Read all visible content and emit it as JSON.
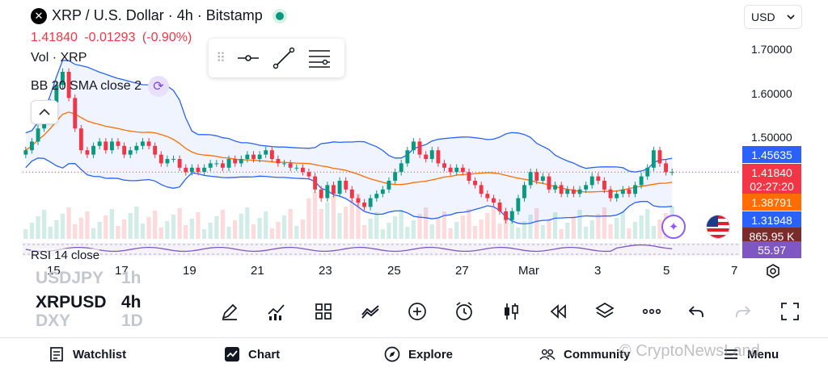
{
  "header": {
    "symbol_title": "XRP / U.S. Dollar · 4h · Bitstamp",
    "last_price": "1.41840",
    "change": "-0.01293",
    "change_pct": "(-0.90%)",
    "volume_label": "Vol · XRP",
    "indicator_label": "BB 20 SMA close 2",
    "logo_letter": "✕"
  },
  "currency_select": {
    "value": "USD"
  },
  "price_axis": {
    "ticks": [
      "1.70000",
      "1.60000",
      "1.50000"
    ],
    "tags": [
      {
        "text": "1.45635",
        "color": "#2962ff"
      },
      {
        "text": "1.41840",
        "color": "#f23645"
      },
      {
        "text": "02:27:20",
        "color": "#f23645"
      },
      {
        "text": "1.38791",
        "color": "#ff6d00"
      },
      {
        "text": "1.31948",
        "color": "#2962ff"
      },
      {
        "text": "865.95 K",
        "color": "#7a2b2b"
      },
      {
        "text": "55.97",
        "color": "#7e57c2"
      }
    ]
  },
  "rsi": {
    "label": "RSI 14 close"
  },
  "time_axis": {
    "ticks": [
      "15",
      "17",
      "19",
      "21",
      "23",
      "25",
      "27",
      "Mar",
      "3",
      "5",
      "7"
    ]
  },
  "symbols": [
    {
      "sym": "USDJPY",
      "tf": "1h",
      "state": "faded"
    },
    {
      "sym": "XRPUSD",
      "tf": "4h",
      "state": "active"
    },
    {
      "sym": "DXY",
      "tf": "1D",
      "state": "faded"
    }
  ],
  "toolbar": {
    "tools": [
      "brush-icon",
      "indicators-icon",
      "layouts-icon",
      "compare-icon",
      "add-icon",
      "alert-clock-icon",
      "candles-icon",
      "replay-icon",
      "layers-icon",
      "more-icon",
      "undo-icon",
      "redo-icon",
      "fullscreen-icon"
    ]
  },
  "nav": {
    "watchlist": "Watchlist",
    "chart": "Chart",
    "explore": "Explore",
    "community": "Community",
    "menu": "Menu"
  },
  "watermark": "© CryptoNewsLand",
  "colors": {
    "up": "#089981",
    "down": "#f23645",
    "bb_band": "#2962ff",
    "bb_basis": "#ff6d00",
    "rsi": "#7e57c2"
  },
  "chart_data": {
    "type": "candlestick",
    "symbol": "XRPUSD",
    "timeframe": "4h",
    "ylim": [
      1.2,
      1.75
    ],
    "x_ticks": [
      "15",
      "17",
      "19",
      "21",
      "23",
      "25",
      "27",
      "Mar",
      "3",
      "5",
      "7"
    ],
    "closes": [
      1.47,
      1.49,
      1.52,
      1.54,
      1.58,
      1.62,
      1.65,
      1.59,
      1.52,
      1.47,
      1.46,
      1.48,
      1.49,
      1.47,
      1.49,
      1.48,
      1.46,
      1.47,
      1.48,
      1.49,
      1.48,
      1.46,
      1.44,
      1.45,
      1.45,
      1.43,
      1.42,
      1.43,
      1.42,
      1.43,
      1.44,
      1.44,
      1.43,
      1.45,
      1.44,
      1.45,
      1.46,
      1.45,
      1.46,
      1.47,
      1.45,
      1.44,
      1.44,
      1.43,
      1.43,
      1.42,
      1.41,
      1.38,
      1.36,
      1.39,
      1.37,
      1.4,
      1.38,
      1.36,
      1.35,
      1.34,
      1.36,
      1.37,
      1.38,
      1.4,
      1.42,
      1.44,
      1.47,
      1.49,
      1.46,
      1.45,
      1.47,
      1.44,
      1.43,
      1.42,
      1.43,
      1.42,
      1.4,
      1.39,
      1.37,
      1.36,
      1.35,
      1.33,
      1.31,
      1.33,
      1.36,
      1.39,
      1.42,
      1.4,
      1.41,
      1.38,
      1.39,
      1.37,
      1.38,
      1.37,
      1.38,
      1.39,
      1.41,
      1.4,
      1.38,
      1.36,
      1.37,
      1.38,
      1.37,
      1.39,
      1.41,
      1.43,
      1.47,
      1.44,
      1.42,
      1.42
    ],
    "bb_upper_label": "1.45635",
    "bb_basis_label": "1.38791",
    "bb_lower_label": "1.31948",
    "volume_last": "865.95 K",
    "rsi_last": "55.97"
  }
}
